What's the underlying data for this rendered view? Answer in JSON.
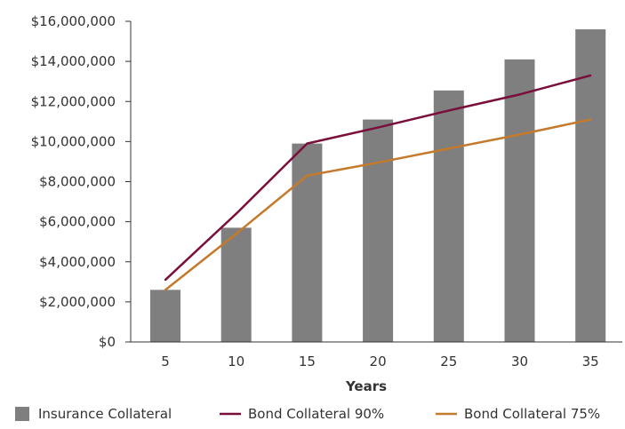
{
  "chart_data": {
    "type": "bar",
    "categories": [
      "5",
      "10",
      "15",
      "20",
      "25",
      "30",
      "35"
    ],
    "xlabel": "Years",
    "ylabel": "",
    "ylim": [
      0,
      16000000
    ],
    "y_ticks": [
      0,
      2000000,
      4000000,
      6000000,
      8000000,
      10000000,
      12000000,
      14000000,
      16000000
    ],
    "y_tick_labels": [
      "$0",
      "$2,000,000",
      "$4,000,000",
      "$6,000,000",
      "$8,000,000",
      "$10,000,000",
      "$12,000,000",
      "$14,000,000",
      "$16,000,000"
    ],
    "grid": false,
    "legend_position": "bottom",
    "series": [
      {
        "name": "Insurance Collateral",
        "kind": "bar",
        "color": "#7f7f7f",
        "values": [
          2600000,
          5700000,
          9900000,
          11100000,
          12550000,
          14100000,
          15600000
        ]
      },
      {
        "name": "Bond Collateral 90%",
        "kind": "line",
        "color": "#7a0f3c",
        "values": [
          3100000,
          6400000,
          9900000,
          10700000,
          11550000,
          12350000,
          13300000
        ]
      },
      {
        "name": "Bond Collateral 75%",
        "kind": "line",
        "color": "#c47a2c",
        "values": [
          2600000,
          5400000,
          8300000,
          8950000,
          9650000,
          10350000,
          11100000
        ]
      }
    ]
  }
}
